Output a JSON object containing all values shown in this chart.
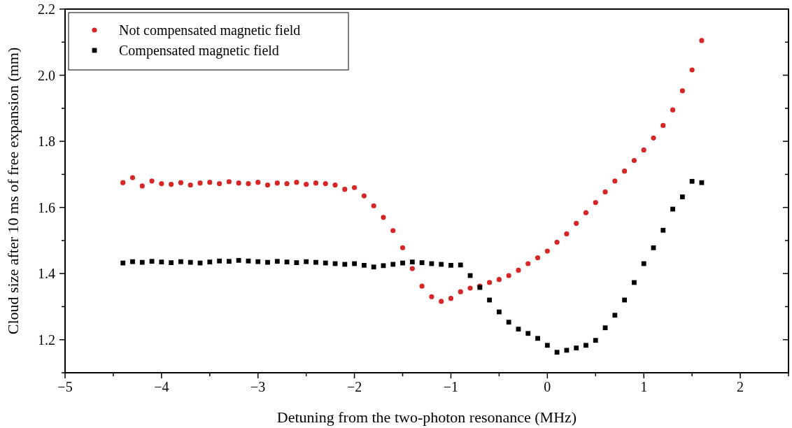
{
  "chart_data": {
    "type": "scatter",
    "xlabel": "Detuning from the two-photon resonance (MHz)",
    "ylabel": "Cloud size after 10 ms of free expansion (mm)",
    "x": [
      -4.4,
      -4.3,
      -4.2,
      -4.1,
      -4.0,
      -3.9,
      -3.8,
      -3.7,
      -3.6,
      -3.5,
      -3.4,
      -3.3,
      -3.2,
      -3.1,
      -3.0,
      -2.9,
      -2.8,
      -2.7,
      -2.6,
      -2.5,
      -2.4,
      -2.3,
      -2.2,
      -2.1,
      -2.0,
      -1.9,
      -1.8,
      -1.7,
      -1.6,
      -1.5,
      -1.4,
      -1.3,
      -1.2,
      -1.1,
      -1.0,
      -0.9,
      -0.8,
      -0.7,
      -0.6,
      -0.5,
      -0.4,
      -0.3,
      -0.2,
      -0.1,
      0,
      0.1,
      0.2,
      0.3,
      0.4,
      0.5,
      0.6,
      0.7,
      0.8,
      0.9,
      1.0,
      1.1,
      1.2,
      1.3,
      1.4,
      1.5,
      1.6
    ],
    "series": [
      {
        "name": "Not compensated magnetic field",
        "color": "#d62728",
        "marker": "circle",
        "values": [
          1.675,
          1.69,
          1.665,
          1.68,
          1.672,
          1.67,
          1.675,
          1.668,
          1.674,
          1.676,
          1.672,
          1.678,
          1.674,
          1.672,
          1.676,
          1.668,
          1.674,
          1.672,
          1.676,
          1.67,
          1.674,
          1.672,
          1.668,
          1.655,
          1.66,
          1.635,
          1.605,
          1.57,
          1.53,
          1.478,
          1.415,
          1.362,
          1.33,
          1.316,
          1.325,
          1.345,
          1.356,
          1.362,
          1.373,
          1.382,
          1.394,
          1.41,
          1.43,
          1.448,
          1.468,
          1.495,
          1.52,
          1.552,
          1.584,
          1.615,
          1.647,
          1.68,
          1.71,
          1.742,
          1.774,
          1.81,
          1.848,
          1.895,
          1.953,
          2.016,
          2.105
        ]
      },
      {
        "name": "Compensated magnetic field",
        "color": "#000000",
        "marker": "square",
        "values": [
          1.432,
          1.436,
          1.434,
          1.437,
          1.435,
          1.433,
          1.436,
          1.434,
          1.432,
          1.435,
          1.438,
          1.437,
          1.44,
          1.438,
          1.436,
          1.434,
          1.437,
          1.435,
          1.433,
          1.436,
          1.434,
          1.432,
          1.43,
          1.428,
          1.43,
          1.425,
          1.42,
          1.424,
          1.428,
          1.432,
          1.435,
          1.433,
          1.43,
          1.428,
          1.425,
          1.426,
          1.394,
          1.358,
          1.32,
          1.284,
          1.253,
          1.232,
          1.219,
          1.204,
          1.183,
          1.162,
          1.168,
          1.175,
          1.183,
          1.198,
          1.236,
          1.274,
          1.32,
          1.373,
          1.43,
          1.478,
          1.531,
          1.595,
          1.632,
          1.679,
          1.675
        ]
      }
    ],
    "xlim": [
      -5,
      2.5
    ],
    "ylim": [
      1.1,
      2.2
    ],
    "xticks": [
      -5,
      {
        "value": -4.5,
        "label": null
      },
      -4,
      {
        "value": -3.5,
        "label": null
      },
      -3,
      {
        "value": -2.5,
        "label": null
      },
      -2,
      {
        "value": -1.5,
        "label": null
      },
      -1,
      {
        "value": -0.5,
        "label": null
      },
      0,
      {
        "value": 0.5,
        "label": null
      },
      1,
      {
        "value": 1.5,
        "label": null
      },
      2,
      {
        "value": 2.5,
        "label": null
      }
    ],
    "yticks": [
      {
        "value": 1.1,
        "label": null
      },
      {
        "value": 1.2,
        "label": "1.2"
      },
      {
        "value": 1.3,
        "label": null
      },
      {
        "value": 1.4,
        "label": "1.4"
      },
      {
        "value": 1.5,
        "label": null
      },
      {
        "value": 1.6,
        "label": "1.6"
      },
      {
        "value": 1.7,
        "label": null
      },
      {
        "value": 1.8,
        "label": "1.8"
      },
      {
        "value": 1.9,
        "label": null
      },
      {
        "value": 2.0,
        "label": "2.0"
      },
      {
        "value": 2.1,
        "label": null
      },
      {
        "value": 2.2,
        "label": "2.2"
      }
    ],
    "grid": false,
    "legend": "top left"
  }
}
